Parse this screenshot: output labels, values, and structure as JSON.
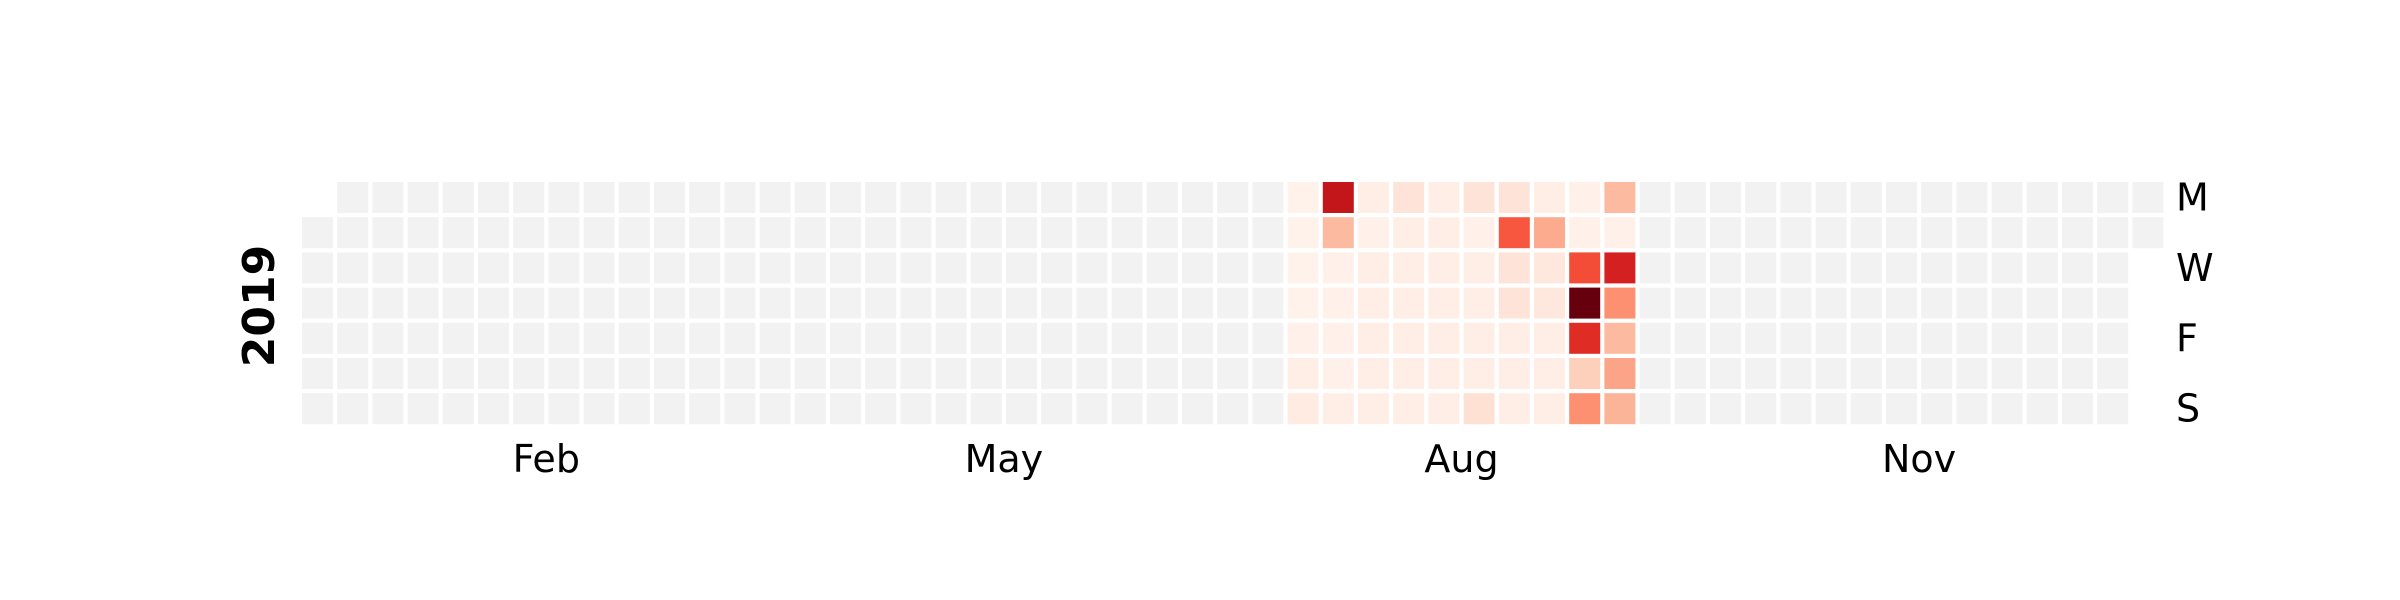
{
  "chart_data": {
    "type": "heatmap",
    "year_label": "2019",
    "start_date": "2019-01-01",
    "end_date": "2019-12-31",
    "first_date_row": 1,
    "day_labels": [
      {
        "row": 0,
        "text": "M"
      },
      {
        "row": 2,
        "text": "W"
      },
      {
        "row": 4,
        "text": "F"
      },
      {
        "row": 6,
        "text": "S"
      }
    ],
    "month_labels": [
      {
        "text": "Feb",
        "week": 6.5
      },
      {
        "text": "May",
        "week": 19.5
      },
      {
        "text": "Aug",
        "week": 32.5
      },
      {
        "text": "Nov",
        "week": 45.5
      }
    ],
    "colorscale": "Reds",
    "empty_color": "#f2f2f2",
    "week_start": 28,
    "active_weeks": [
      [
        0.02,
        0.02,
        0.02,
        0.02,
        0.03,
        0.04,
        0.06
      ],
      [
        0.78,
        0.25,
        0.03,
        0.03,
        0.03,
        0.03,
        0.04
      ],
      [
        0.04,
        0.03,
        0.04,
        0.04,
        0.04,
        0.04,
        0.04
      ],
      [
        0.1,
        0.04,
        0.04,
        0.04,
        0.04,
        0.04,
        0.04
      ],
      [
        0.04,
        0.04,
        0.04,
        0.04,
        0.04,
        0.04,
        0.04
      ],
      [
        0.1,
        0.03,
        0.04,
        0.04,
        0.04,
        0.04,
        0.12
      ],
      [
        0.1,
        0.55,
        0.1,
        0.1,
        0.04,
        0.04,
        0.04
      ],
      [
        0.04,
        0.3,
        0.08,
        0.08,
        0.04,
        0.04,
        0.04
      ],
      [
        0.03,
        0.03,
        0.58,
        1.0,
        0.68,
        0.18,
        0.38
      ],
      [
        0.25,
        0.03,
        0.72,
        0.38,
        0.25,
        0.32,
        0.27
      ]
    ]
  }
}
